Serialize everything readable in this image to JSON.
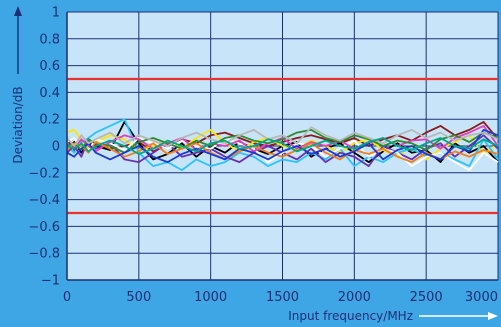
{
  "chart_data": {
    "type": "line",
    "xlabel": "Input frequency/MHz",
    "ylabel": "Deviation/dB",
    "xlim": [
      0,
      3000
    ],
    "ylim": [
      -1,
      1
    ],
    "x_ticks": [
      0,
      500,
      1000,
      1500,
      2000,
      2500,
      3000
    ],
    "x_tick_labels": [
      "0",
      "500",
      "1000",
      "1500",
      "2000",
      "2500",
      "3000"
    ],
    "y_ticks": [
      1,
      0.8,
      0.6,
      0.4,
      0.2,
      0,
      -0.2,
      -0.4,
      -0.6,
      -0.8,
      -1
    ],
    "y_tick_labels": [
      "1",
      "0.8",
      "0.6",
      "0.4",
      "0.2",
      "0",
      "−0.2",
      "−0.4",
      "−0.6",
      "−0.8",
      "−1"
    ],
    "grid": true,
    "limit_lines": {
      "values": [
        0.5,
        -0.5
      ],
      "color": "#e8322b"
    },
    "colors": {
      "background": "#3fa6e6",
      "plot_area": "#c8e4f8",
      "grid": "#1f2f74",
      "axis": "#1f2f74"
    },
    "x": [
      0,
      50,
      100,
      150,
      200,
      300,
      400,
      500,
      600,
      700,
      800,
      900,
      1000,
      1100,
      1200,
      1300,
      1400,
      1500,
      1600,
      1700,
      1800,
      1900,
      2000,
      2100,
      2200,
      2300,
      2400,
      2500,
      2600,
      2700,
      2800,
      2900,
      3000
    ],
    "series": [
      {
        "color": "#8b1a1a",
        "values": [
          0.05,
          -0.03,
          0.04,
          0.02,
          0.01,
          -0.02,
          0.0,
          0.03,
          -0.04,
          0.01,
          0.05,
          0.02,
          0.08,
          0.1,
          0.06,
          0.02,
          0.0,
          0.03,
          0.06,
          0.08,
          0.05,
          0.02,
          0.06,
          0.0,
          0.05,
          0.08,
          0.04,
          0.1,
          0.15,
          0.08,
          0.12,
          0.18,
          0.05
        ]
      },
      {
        "color": "#000000",
        "values": [
          -0.02,
          0.03,
          -0.05,
          0.02,
          0.0,
          -0.03,
          0.18,
          0.02,
          -0.1,
          -0.06,
          0.02,
          -0.08,
          0.0,
          -0.05,
          0.03,
          -0.02,
          -0.06,
          0.0,
          0.03,
          -0.08,
          -0.02,
          0.02,
          -0.05,
          -0.12,
          -0.04,
          0.02,
          -0.05,
          -0.03,
          -0.12,
          0.02,
          -0.05,
          0.0,
          -0.12
        ]
      },
      {
        "color": "#ffe600",
        "values": [
          0.1,
          0.12,
          0.05,
          -0.02,
          0.03,
          0.08,
          0.05,
          -0.03,
          0.0,
          0.04,
          -0.02,
          0.06,
          0.12,
          0.02,
          -0.04,
          0.03,
          0.06,
          0.0,
          -0.02,
          0.04,
          0.0,
          -0.05,
          0.02,
          0.05,
          -0.03,
          -0.08,
          0.0,
          -0.1,
          -0.02,
          0.03,
          0.08,
          -0.06,
          0.02
        ]
      },
      {
        "color": "#29c3ff",
        "values": [
          0.0,
          -0.05,
          0.03,
          0.06,
          0.1,
          0.15,
          0.2,
          -0.05,
          -0.15,
          -0.12,
          -0.18,
          -0.1,
          -0.15,
          -0.12,
          -0.05,
          -0.08,
          -0.15,
          -0.1,
          -0.12,
          -0.05,
          -0.1,
          -0.02,
          -0.15,
          -0.08,
          -0.12,
          -0.05,
          -0.02,
          -0.08,
          -0.05,
          -0.1,
          -0.15,
          0.05,
          -0.1
        ]
      },
      {
        "color": "#6b2fb3",
        "values": [
          -0.05,
          0.0,
          -0.08,
          0.05,
          -0.02,
          0.02,
          -0.1,
          -0.12,
          -0.05,
          0.02,
          -0.08,
          -0.05,
          -0.02,
          -0.08,
          -0.12,
          -0.05,
          0.0,
          -0.05,
          -0.1,
          -0.02,
          -0.12,
          -0.05,
          -0.08,
          -0.15,
          0.0,
          -0.05,
          -0.1,
          -0.02,
          0.02,
          -0.08,
          0.0,
          0.08,
          -0.02
        ]
      },
      {
        "color": "#ffffff",
        "values": [
          0.03,
          0.06,
          0.0,
          -0.03,
          0.05,
          0.02,
          -0.03,
          0.06,
          0.02,
          -0.02,
          0.04,
          0.0,
          -0.02,
          0.05,
          0.02,
          -0.02,
          -0.12,
          -0.05,
          0.02,
          0.0,
          -0.08,
          -0.02,
          0.04,
          -0.08,
          -0.02,
          -0.05,
          -0.15,
          -0.08,
          -0.05,
          -0.12,
          -0.18,
          -0.05,
          -0.12
        ]
      },
      {
        "color": "#e040c0",
        "values": [
          0.02,
          -0.02,
          0.05,
          0.0,
          -0.04,
          0.03,
          0.08,
          0.05,
          -0.02,
          0.02,
          0.06,
          -0.03,
          0.02,
          0.0,
          0.04,
          -0.04,
          0.02,
          0.06,
          -0.02,
          0.03,
          0.0,
          0.04,
          -0.02,
          0.02,
          0.06,
          0.0,
          0.04,
          0.05,
          -0.02,
          0.06,
          0.1,
          0.15,
          0.0
        ]
      },
      {
        "color": "#2e8b2e",
        "values": [
          0.0,
          0.02,
          -0.03,
          0.05,
          0.02,
          0.0,
          -0.05,
          0.03,
          0.06,
          0.02,
          -0.02,
          0.04,
          0.0,
          0.06,
          0.08,
          0.04,
          0.02,
          0.05,
          0.1,
          0.12,
          0.06,
          0.03,
          0.08,
          0.05,
          0.0,
          0.04,
          0.02,
          -0.03,
          0.05,
          0.08,
          0.03,
          0.1,
          0.06
        ]
      },
      {
        "color": "#f07f1e",
        "values": [
          -0.03,
          0.02,
          0.0,
          -0.05,
          0.03,
          -0.02,
          -0.08,
          -0.04,
          0.02,
          -0.06,
          -0.02,
          0.02,
          -0.05,
          -0.1,
          -0.04,
          0.0,
          -0.05,
          -0.08,
          -0.03,
          0.02,
          -0.05,
          -0.1,
          -0.03,
          -0.06,
          -0.02,
          -0.08,
          -0.12,
          -0.05,
          -0.1,
          -0.04,
          -0.08,
          -0.03,
          -0.06
        ]
      },
      {
        "color": "#1c3bd6",
        "values": [
          -0.05,
          -0.08,
          -0.02,
          0.02,
          -0.05,
          -0.1,
          -0.05,
          0.0,
          -0.08,
          -0.12,
          -0.06,
          -0.02,
          -0.06,
          -0.1,
          -0.02,
          -0.05,
          -0.1,
          -0.04,
          0.0,
          -0.06,
          -0.02,
          -0.08,
          -0.04,
          0.02,
          -0.1,
          -0.03,
          0.0,
          -0.06,
          -0.1,
          0.0,
          -0.04,
          0.12,
          0.08
        ]
      },
      {
        "color": "#b8b8b8",
        "values": [
          0.06,
          0.0,
          0.08,
          0.02,
          0.05,
          0.1,
          0.02,
          0.08,
          0.04,
          0.0,
          0.06,
          0.1,
          0.05,
          0.02,
          0.08,
          0.12,
          0.05,
          0.08,
          0.02,
          0.14,
          0.08,
          0.04,
          0.1,
          0.06,
          0.02,
          0.08,
          0.12,
          0.06,
          0.1,
          0.04,
          0.08,
          0.1,
          0.05
        ]
      },
      {
        "color": "#00a88a",
        "values": [
          0.0,
          -0.02,
          0.02,
          -0.04,
          0.0,
          0.04,
          0.0,
          -0.06,
          -0.02,
          0.04,
          0.0,
          -0.04,
          0.02,
          0.04,
          -0.02,
          0.0,
          0.05,
          0.02,
          -0.04,
          0.0,
          0.04,
          0.0,
          -0.02,
          0.03,
          0.06,
          0.0,
          -0.03,
          0.02,
          0.06,
          0.0,
          -0.02,
          0.05,
          0.0
        ]
      }
    ]
  }
}
